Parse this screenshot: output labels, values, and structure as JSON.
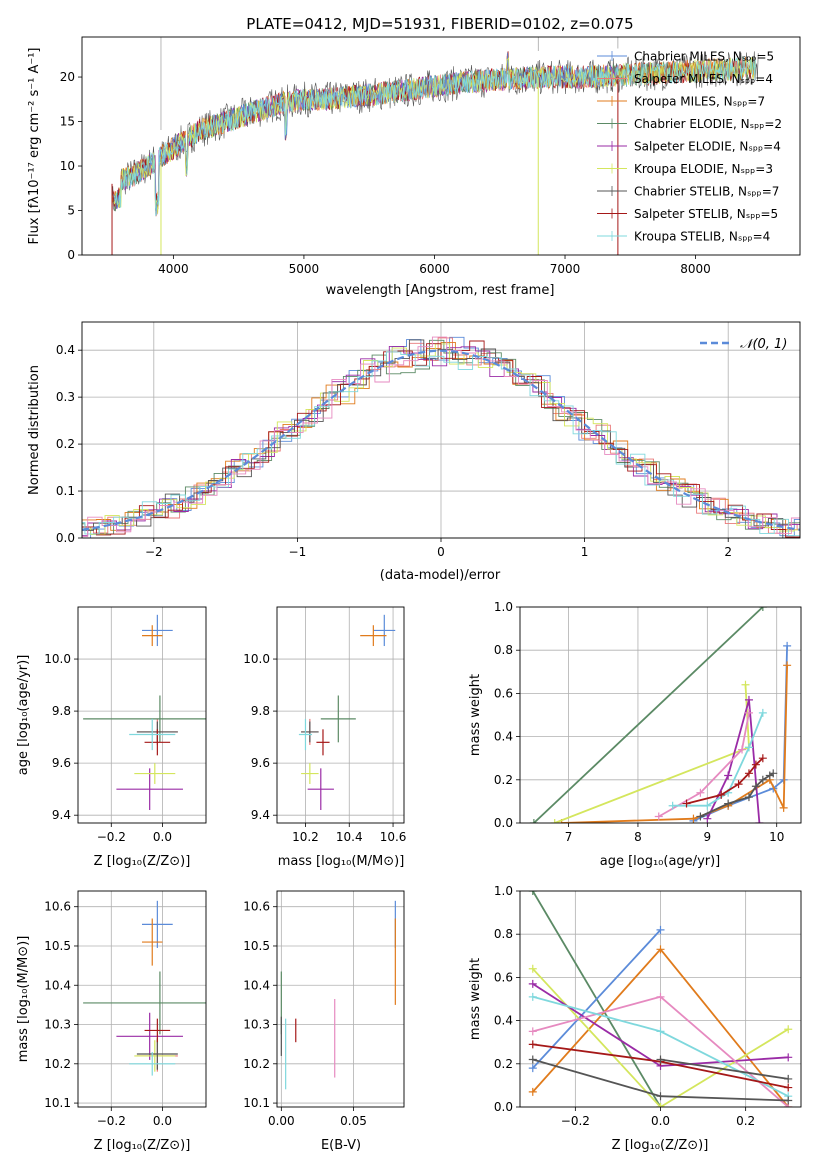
{
  "colors": {
    "chabrier_miles": "#5b8bd9",
    "salpeter_miles": "#e9797a",
    "kroupa_miles": "#e07b1c",
    "chabrier_elodie": "#5b8a65",
    "salpeter_elodie": "#9a2ba6",
    "kroupa_elodie": "#d4e65d",
    "chabrier_stelib": "#555555",
    "salpeter_stelib": "#a51818",
    "kroupa_stelib": "#7fd8dd",
    "pink": "#e68ac0",
    "normal": "#5b8bd9",
    "grid": "#b0b0b0"
  },
  "chart_data": [
    {
      "id": "spectrum",
      "type": "line",
      "title": "PLATE=0412, MJD=51931, FIBERID=0102, z=0.075",
      "xlabel": "wavelength [Angstrom, rest frame]",
      "ylabel": "Flux [fλ10⁻¹⁷ erg cm⁻² s⁻¹ A⁻¹]",
      "xlim": [
        3300,
        8800
      ],
      "ylim": [
        0,
        24.5
      ],
      "xticks": [
        "4000",
        "5000",
        "6000",
        "7000",
        "8000"
      ],
      "yticks": [
        "0",
        "5",
        "10",
        "15",
        "20"
      ],
      "grid": false,
      "legend_position": "right",
      "legend": [
        "Chabrier MILES, Nₛₚₚ=5",
        "Salpeter MILES, Nₛₚₚ=4",
        "Kroupa MILES, Nₛₚₚ=7",
        "Chabrier ELODIE, Nₛₚₚ=2",
        "Salpeter ELODIE, Nₛₚₚ=4",
        "Kroupa ELODIE, Nₛₚₚ=3",
        "Chabrier STELIB, Nₛₚₚ=7",
        "Salpeter STELIB, Nₛₚₚ=5",
        "Kroupa STELIB, Nₛₚₚ=4"
      ],
      "trend_x": [
        3530,
        3700,
        3900,
        4000,
        4200,
        4500,
        4800,
        5000,
        5200,
        5500,
        5800,
        6000,
        6300,
        6600,
        6900,
        7200,
        7500,
        7800,
        8100,
        8400
      ],
      "trend_y": [
        8,
        9,
        11,
        12,
        14,
        15.5,
        17,
        17.5,
        17.5,
        18,
        18.5,
        19,
        19.5,
        19.8,
        20,
        20,
        20.3,
        20.5,
        20.8,
        21
      ]
    },
    {
      "id": "residuals",
      "type": "line",
      "xlabel": "(data-model)/error",
      "ylabel": "Normed distribution",
      "xlim": [
        -2.5,
        2.5
      ],
      "ylim": [
        0,
        0.46
      ],
      "xticks": [
        "−2",
        "−1",
        "0",
        "1",
        "2"
      ],
      "yticks": [
        "0.0",
        "0.1",
        "0.2",
        "0.3",
        "0.4"
      ],
      "grid": true,
      "legend": [
        "𝒩(0, 1)"
      ],
      "legend_position": "top-right",
      "bin_width": 0.1
    },
    {
      "id": "age_vs_Z",
      "type": "scatter",
      "xlabel": "Z [log₁₀(Z/Z⊙)]",
      "ylabel": "age  [log₁₀(age/yr)]",
      "xlim": [
        -0.33,
        0.17
      ],
      "ylim": [
        9.37,
        10.2
      ],
      "xticks": [
        "−0.2",
        "0.0"
      ],
      "yticks": [
        "9.4",
        "9.6",
        "9.8",
        "10.0"
      ],
      "grid": true,
      "points": [
        {
          "x": -0.02,
          "y": 10.11,
          "xerr": 0.06,
          "yerr": 0.06,
          "c": "chabrier_miles"
        },
        {
          "x": -0.04,
          "y": 10.09,
          "xerr": 0.04,
          "yerr": 0.04,
          "c": "kroupa_miles"
        },
        {
          "x": -0.02,
          "y": 9.72,
          "xerr": 0.08,
          "yerr": 0.05,
          "c": "salpeter_miles"
        },
        {
          "x": -0.01,
          "y": 9.77,
          "xerr": 0.3,
          "yerr": 0.09,
          "c": "chabrier_elodie"
        },
        {
          "x": -0.05,
          "y": 9.5,
          "xerr": 0.13,
          "yerr": 0.08,
          "c": "salpeter_elodie"
        },
        {
          "x": -0.03,
          "y": 9.56,
          "xerr": 0.08,
          "yerr": 0.04,
          "c": "kroupa_elodie"
        },
        {
          "x": -0.02,
          "y": 9.72,
          "xerr": 0.08,
          "yerr": 0.04,
          "c": "chabrier_stelib"
        },
        {
          "x": -0.02,
          "y": 9.68,
          "xerr": 0.05,
          "yerr": 0.05,
          "c": "salpeter_stelib"
        },
        {
          "x": -0.04,
          "y": 9.71,
          "xerr": 0.09,
          "yerr": 0.06,
          "c": "kroupa_stelib"
        }
      ]
    },
    {
      "id": "age_vs_mass",
      "type": "scatter",
      "xlabel": "mass [log₁₀(M/M⊙)]",
      "xlim": [
        10.07,
        10.65
      ],
      "ylim": [
        9.37,
        10.2
      ],
      "xticks": [
        "10.2",
        "10.4",
        "10.6"
      ],
      "yticks": [
        "9.4",
        "9.6",
        "9.8",
        "10.0"
      ],
      "grid": true,
      "points": [
        {
          "x": 10.56,
          "y": 10.11,
          "xerr": 0.05,
          "yerr": 0.06,
          "c": "chabrier_miles"
        },
        {
          "x": 10.51,
          "y": 10.09,
          "xerr": 0.06,
          "yerr": 0.04,
          "c": "kroupa_miles"
        },
        {
          "x": 10.22,
          "y": 9.72,
          "xerr": 0.04,
          "yerr": 0.05,
          "c": "salpeter_miles"
        },
        {
          "x": 10.35,
          "y": 9.77,
          "xerr": 0.08,
          "yerr": 0.09,
          "c": "chabrier_elodie"
        },
        {
          "x": 10.27,
          "y": 9.5,
          "xerr": 0.06,
          "yerr": 0.08,
          "c": "salpeter_elodie"
        },
        {
          "x": 10.22,
          "y": 9.56,
          "xerr": 0.04,
          "yerr": 0.04,
          "c": "kroupa_elodie"
        },
        {
          "x": 10.22,
          "y": 9.72,
          "xerr": 0.04,
          "yerr": 0.04,
          "c": "chabrier_stelib"
        },
        {
          "x": 10.28,
          "y": 9.68,
          "xerr": 0.03,
          "yerr": 0.05,
          "c": "salpeter_stelib"
        },
        {
          "x": 10.2,
          "y": 9.71,
          "xerr": 0.03,
          "yerr": 0.06,
          "c": "kroupa_stelib"
        }
      ]
    },
    {
      "id": "massweight_vs_age",
      "type": "line",
      "xlabel": "age  [log₁₀(age/yr)]",
      "ylabel": "mass weight",
      "xlim": [
        6.3,
        10.35
      ],
      "ylim": [
        0,
        1
      ],
      "xticks": [
        "7",
        "8",
        "9",
        "10"
      ],
      "yticks": [
        "0.0",
        "0.2",
        "0.4",
        "0.6",
        "0.8",
        "1.0"
      ],
      "grid": true,
      "series": [
        {
          "c": "chabrier_elodie",
          "x": [
            6.5,
            9.8
          ],
          "y": [
            0.0,
            1.0
          ]
        },
        {
          "c": "chabrier_miles",
          "x": [
            8.8,
            9.3,
            9.95,
            10.1,
            10.15
          ],
          "y": [
            0.01,
            0.08,
            0.16,
            0.2,
            0.82
          ]
        },
        {
          "c": "kroupa_miles",
          "x": [
            6.9,
            8.8,
            9.3,
            9.9,
            10.1,
            10.15
          ],
          "y": [
            0.0,
            0.02,
            0.08,
            0.2,
            0.07,
            0.73
          ]
        },
        {
          "c": "kroupa_elodie",
          "x": [
            6.8,
            9.6,
            9.55
          ],
          "y": [
            0.0,
            0.35,
            0.64
          ]
        },
        {
          "c": "salpeter_elodie",
          "x": [
            9.0,
            9.3,
            9.6,
            9.75
          ],
          "y": [
            0.02,
            0.22,
            0.57,
            0.0
          ]
        },
        {
          "c": "pink",
          "x": [
            8.3,
            8.9,
            9.5,
            9.6
          ],
          "y": [
            0.03,
            0.14,
            0.34,
            0.51
          ]
        },
        {
          "c": "kroupa_stelib",
          "x": [
            8.5,
            9.0,
            9.3,
            9.6,
            9.8
          ],
          "y": [
            0.08,
            0.08,
            0.14,
            0.35,
            0.51
          ]
        },
        {
          "c": "salpeter_stelib",
          "x": [
            8.7,
            9.2,
            9.45,
            9.6,
            9.7,
            9.8
          ],
          "y": [
            0.09,
            0.13,
            0.18,
            0.23,
            0.27,
            0.3
          ]
        },
        {
          "c": "chabrier_stelib",
          "x": [
            8.9,
            9.3,
            9.6,
            9.7,
            9.8,
            9.9,
            9.95
          ],
          "y": [
            0.03,
            0.09,
            0.12,
            0.17,
            0.2,
            0.22,
            0.23
          ]
        }
      ]
    },
    {
      "id": "mass_vs_Z",
      "type": "scatter",
      "xlabel": "Z [log₁₀(Z/Z⊙)]",
      "ylabel": "mass [log₁₀(M/M⊙)]",
      "xlim": [
        -0.33,
        0.17
      ],
      "ylim": [
        10.09,
        10.64
      ],
      "xticks": [
        "−0.2",
        "0.0"
      ],
      "yticks": [
        "10.1",
        "10.2",
        "10.3",
        "10.4",
        "10.5",
        "10.6"
      ],
      "grid": true,
      "points": [
        {
          "x": -0.02,
          "y": 10.555,
          "xerr": 0.06,
          "yerr": 0.06,
          "c": "chabrier_miles"
        },
        {
          "x": -0.04,
          "y": 10.51,
          "xerr": 0.04,
          "yerr": 0.06,
          "c": "kroupa_miles"
        },
        {
          "x": -0.02,
          "y": 10.22,
          "xerr": 0.08,
          "yerr": 0.04,
          "c": "salpeter_miles"
        },
        {
          "x": -0.01,
          "y": 10.355,
          "xerr": 0.3,
          "yerr": 0.08,
          "c": "chabrier_elodie"
        },
        {
          "x": -0.05,
          "y": 10.27,
          "xerr": 0.13,
          "yerr": 0.06,
          "c": "salpeter_elodie"
        },
        {
          "x": -0.03,
          "y": 10.22,
          "xerr": 0.08,
          "yerr": 0.04,
          "c": "kroupa_elodie"
        },
        {
          "x": -0.02,
          "y": 10.225,
          "xerr": 0.08,
          "yerr": 0.04,
          "c": "chabrier_stelib"
        },
        {
          "x": -0.02,
          "y": 10.285,
          "xerr": 0.05,
          "yerr": 0.03,
          "c": "salpeter_stelib"
        },
        {
          "x": -0.04,
          "y": 10.2,
          "xerr": 0.09,
          "yerr": 0.03,
          "c": "kroupa_stelib"
        }
      ]
    },
    {
      "id": "mass_vs_EBV",
      "type": "scatter",
      "xlabel": "E(B-V)",
      "xlim": [
        -0.003,
        0.085
      ],
      "ylim": [
        10.09,
        10.64
      ],
      "xticks": [
        "0.00",
        "0.05"
      ],
      "yticks": [
        "10.1",
        "10.2",
        "10.3",
        "10.4",
        "10.5",
        "10.6"
      ],
      "grid": true,
      "points": [
        {
          "x": 0.079,
          "y": 10.555,
          "yerr": 0.06,
          "c": "chabrier_miles"
        },
        {
          "x": 0.079,
          "y": 10.46,
          "yerr": 0.11,
          "c": "kroupa_miles"
        },
        {
          "x": 0.0,
          "y": 10.355,
          "yerr": 0.08,
          "c": "chabrier_elodie"
        },
        {
          "x": 0.0,
          "y": 10.27,
          "yerr": 0.05,
          "c": "chabrier_stelib"
        },
        {
          "x": 0.003,
          "y": 10.225,
          "yerr": 0.09,
          "c": "kroupa_stelib"
        },
        {
          "x": 0.01,
          "y": 10.285,
          "yerr": 0.03,
          "c": "salpeter_stelib"
        },
        {
          "x": 0.037,
          "y": 10.265,
          "yerr": 0.1,
          "c": "pink"
        }
      ]
    },
    {
      "id": "massweight_vs_Z",
      "type": "line",
      "xlabel": "Z [log₁₀(Z/Z⊙)]",
      "ylabel": "mass weight",
      "xlim": [
        -0.33,
        0.33
      ],
      "ylim": [
        0,
        1
      ],
      "xticks": [
        "−0.2",
        "0.0",
        "0.2"
      ],
      "yticks": [
        "0.0",
        "0.2",
        "0.4",
        "0.6",
        "0.8",
        "1.0"
      ],
      "grid": true,
      "series": [
        {
          "c": "chabrier_elodie",
          "x": [
            -0.3,
            0.0
          ],
          "y": [
            1.0,
            0.0
          ]
        },
        {
          "c": "chabrier_miles",
          "x": [
            -0.3,
            0.0
          ],
          "y": [
            0.18,
            0.82
          ]
        },
        {
          "c": "kroupa_miles",
          "x": [
            -0.3,
            0.0,
            0.3
          ],
          "y": [
            0.07,
            0.73,
            0.0
          ]
        },
        {
          "c": "kroupa_elodie",
          "x": [
            -0.3,
            0.0,
            0.3
          ],
          "y": [
            0.64,
            0.0,
            0.36
          ]
        },
        {
          "c": "salpeter_elodie",
          "x": [
            -0.3,
            0.0,
            0.3
          ],
          "y": [
            0.57,
            0.19,
            0.23
          ]
        },
        {
          "c": "pink",
          "x": [
            -0.3,
            0.0,
            0.3
          ],
          "y": [
            0.35,
            0.51,
            0.0
          ]
        },
        {
          "c": "kroupa_stelib",
          "x": [
            -0.3,
            0.0,
            0.3
          ],
          "y": [
            0.51,
            0.35,
            0.05
          ]
        },
        {
          "c": "salpeter_stelib",
          "x": [
            -0.3,
            0.0,
            0.3
          ],
          "y": [
            0.29,
            0.21,
            0.09
          ]
        },
        {
          "c": "chabrier_stelib",
          "x": [
            -0.3,
            0.0,
            0.3
          ],
          "y": [
            0.22,
            0.05,
            0.03
          ]
        },
        {
          "c": "chabrier_stelib",
          "x": [
            0.0,
            0.3
          ],
          "y": [
            0.22,
            0.13
          ]
        }
      ]
    }
  ]
}
